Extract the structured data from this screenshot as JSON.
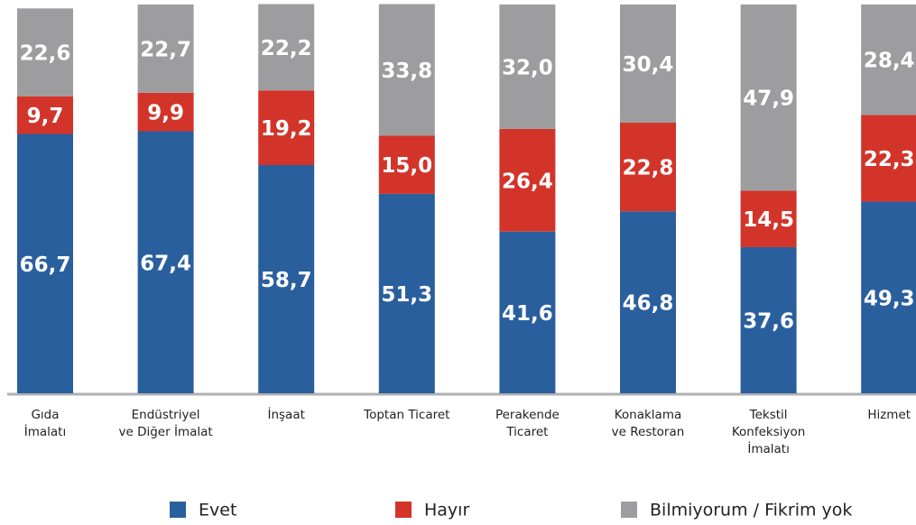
{
  "chart_data": {
    "type": "stacked_bar",
    "categories": [
      [
        "Gıda",
        "İmalatı"
      ],
      [
        "Endüstriyel",
        "ve Diğer İmalat"
      ],
      [
        "İnşaat"
      ],
      [
        "Toptan Ticaret"
      ],
      [
        "Perakende",
        "Ticaret"
      ],
      [
        "Konaklama",
        "ve Restoran"
      ],
      [
        "Tekstil",
        "Konfeksiyon",
        "İmalatı"
      ],
      [
        "Hizmet"
      ]
    ],
    "series": [
      {
        "name": "Evet",
        "color": "#2a5f9e",
        "values": [
          66.7,
          67.4,
          58.7,
          51.3,
          41.6,
          46.8,
          37.6,
          49.3
        ],
        "value_labels": [
          "66,7",
          "67,4",
          "58,7",
          "51,3",
          "41,6",
          "46,8",
          "37,6",
          "49,3"
        ]
      },
      {
        "name": "Hayır",
        "color": "#d2342a",
        "values": [
          9.7,
          9.9,
          19.2,
          15.0,
          26.4,
          22.8,
          14.5,
          22.3
        ],
        "value_labels": [
          "9,7",
          "9,9",
          "19,2",
          "15,0",
          "26,4",
          "22,8",
          "14,5",
          "22,3"
        ]
      },
      {
        "name": "Bilmiyorum / Fikrim yok",
        "color": "#9d9da0",
        "values": [
          22.6,
          22.7,
          22.2,
          33.8,
          32.0,
          30.4,
          47.9,
          28.4
        ],
        "value_labels": [
          "22,6",
          "22,7",
          "22,2",
          "33,8",
          "32,0",
          "30,4",
          "47,9",
          "28,4"
        ]
      }
    ],
    "ylim": [
      0,
      100
    ]
  }
}
